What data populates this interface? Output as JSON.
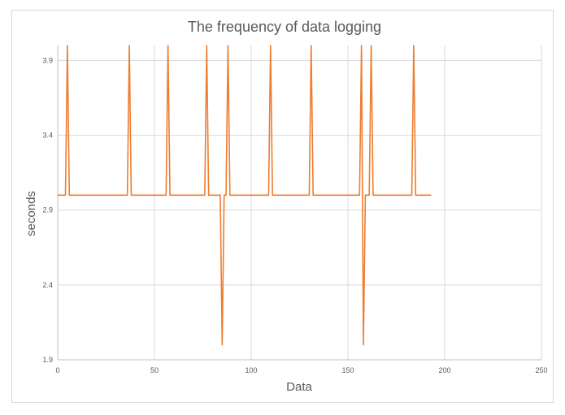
{
  "chart_data": {
    "type": "line",
    "title": "The frequency of data logging",
    "xlabel": "Data",
    "ylabel": "seconds",
    "xlim": [
      0,
      250
    ],
    "ylim": [
      1.9,
      4.0
    ],
    "x_ticks": [
      0,
      50,
      100,
      150,
      200,
      250
    ],
    "y_ticks": [
      1.9,
      2.4,
      2.9,
      3.4,
      3.9
    ],
    "grid": true,
    "line_color": "#ed7d31",
    "series": [
      {
        "points": [
          [
            0,
            3.0
          ],
          [
            4,
            3.0
          ],
          [
            5,
            4.0
          ],
          [
            6,
            3.0
          ],
          [
            36,
            3.0
          ],
          [
            37,
            4.0
          ],
          [
            38,
            3.0
          ],
          [
            56,
            3.0
          ],
          [
            57,
            4.0
          ],
          [
            58,
            3.0
          ],
          [
            76,
            3.0
          ],
          [
            77,
            4.0
          ],
          [
            78,
            3.0
          ],
          [
            84,
            3.0
          ],
          [
            85,
            2.0
          ],
          [
            86,
            3.0
          ],
          [
            87,
            3.0
          ],
          [
            88,
            4.0
          ],
          [
            89,
            3.0
          ],
          [
            109,
            3.0
          ],
          [
            110,
            4.0
          ],
          [
            111,
            3.0
          ],
          [
            130,
            3.0
          ],
          [
            131,
            4.0
          ],
          [
            132,
            3.0
          ],
          [
            156,
            3.0
          ],
          [
            157,
            4.0
          ],
          [
            158,
            2.0
          ],
          [
            159,
            3.0
          ],
          [
            161,
            3.0
          ],
          [
            162,
            4.0
          ],
          [
            163,
            3.0
          ],
          [
            183,
            3.0
          ],
          [
            184,
            4.0
          ],
          [
            185,
            3.0
          ],
          [
            193,
            3.0
          ]
        ]
      }
    ]
  }
}
